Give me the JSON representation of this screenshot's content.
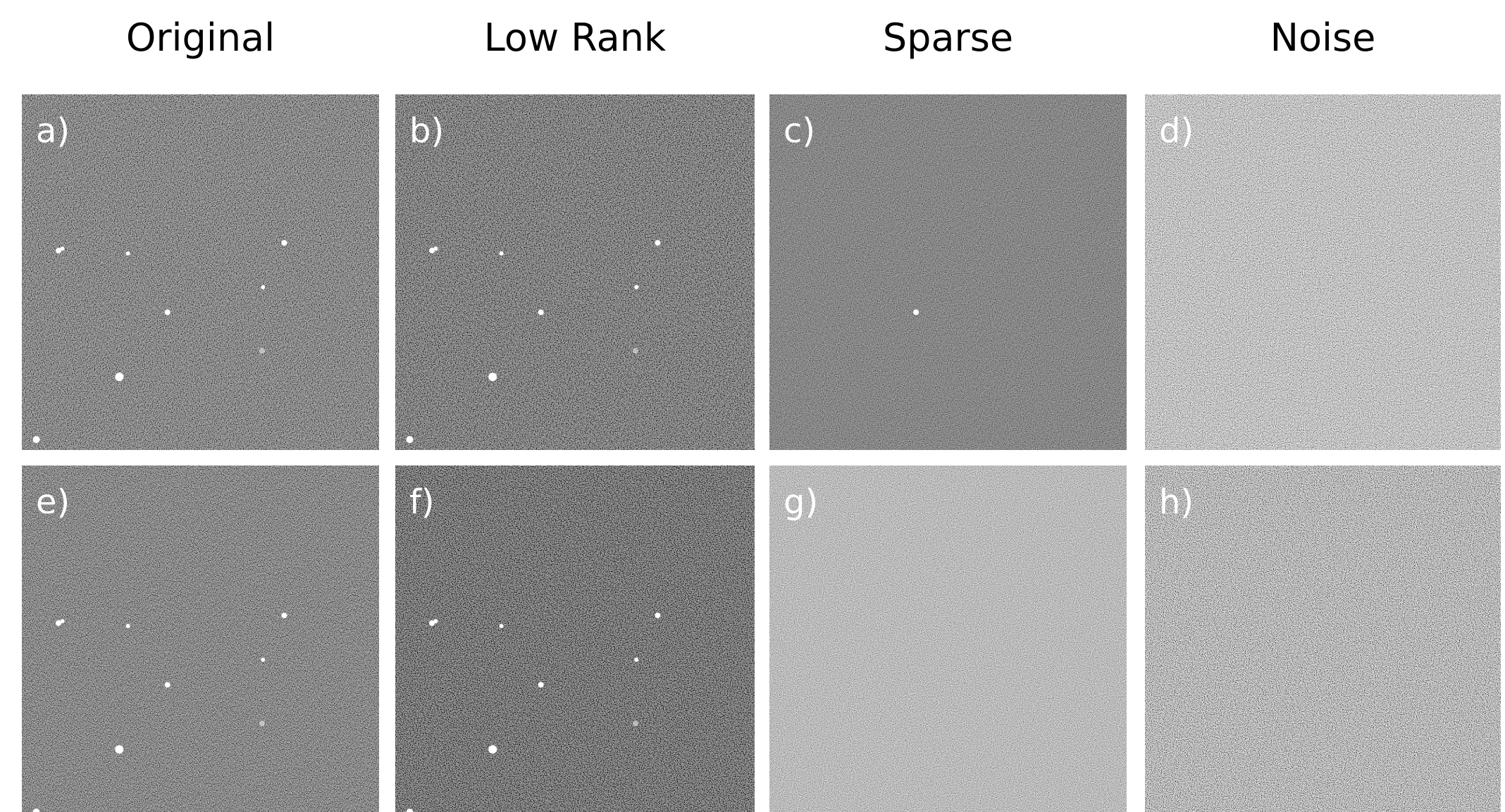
{
  "columns": [
    "Original",
    "Low Rank",
    "Sparse",
    "Noise"
  ],
  "panels": [
    {
      "label": "a)"
    },
    {
      "label": "b)"
    },
    {
      "label": "c)"
    },
    {
      "label": "d)"
    },
    {
      "label": "e)"
    },
    {
      "label": "f)"
    },
    {
      "label": "g)"
    },
    {
      "label": "h)"
    }
  ]
}
